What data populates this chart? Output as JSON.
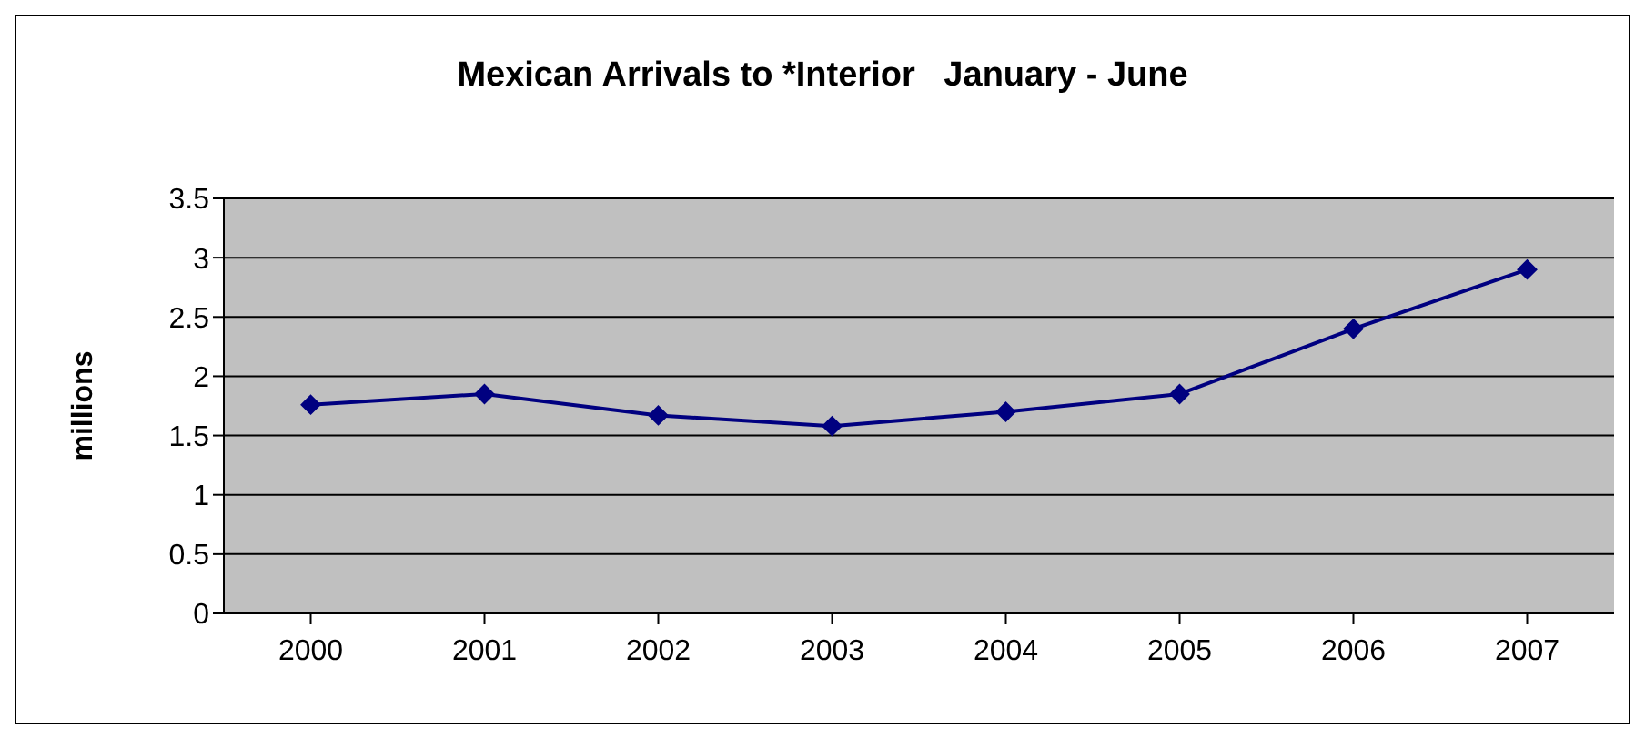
{
  "chart_data": {
    "type": "line",
    "title": "Mexican Arrivals to *Interior   January - June",
    "ylabel": "millions",
    "categories": [
      "2000",
      "2001",
      "2002",
      "2003",
      "2004",
      "2005",
      "2006",
      "2007"
    ],
    "series": [
      {
        "color": "#000080",
        "values": [
          1.76,
          1.85,
          1.67,
          1.58,
          1.7,
          1.85,
          2.4,
          2.9
        ]
      }
    ],
    "ylim": [
      0,
      3.5
    ],
    "yticks": [
      0,
      0.5,
      1,
      1.5,
      2,
      2.5,
      3,
      3.5
    ],
    "grid": "y",
    "marker": "diamond",
    "line_style": "solid",
    "legend": false
  }
}
